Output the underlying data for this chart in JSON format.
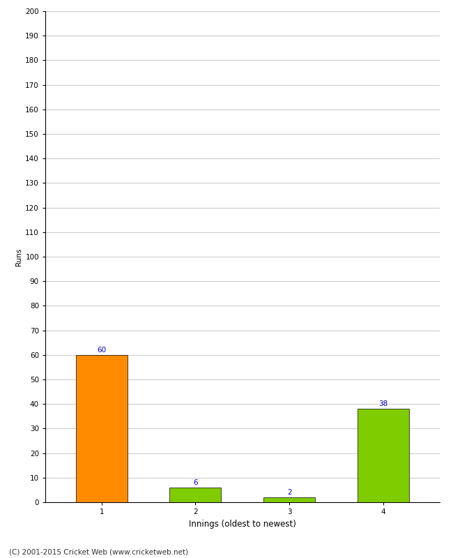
{
  "categories": [
    "1",
    "2",
    "3",
    "4"
  ],
  "values": [
    60,
    6,
    2,
    38
  ],
  "bar_colors": [
    "#ff8c00",
    "#7fcc00",
    "#7fcc00",
    "#7fcc00"
  ],
  "ylabel": "Runs",
  "xlabel": "Innings (oldest to newest)",
  "ylim": [
    0,
    200
  ],
  "yticks": [
    0,
    10,
    20,
    30,
    40,
    50,
    60,
    70,
    80,
    90,
    100,
    110,
    120,
    130,
    140,
    150,
    160,
    170,
    180,
    190,
    200
  ],
  "annotation_color": "#0000cc",
  "annotation_fontsize": 7.5,
  "background_color": "#ffffff",
  "grid_color": "#cccccc",
  "footer": "(C) 2001-2015 Cricket Web (www.cricketweb.net)",
  "xlabel_fontsize": 8.5,
  "ylabel_fontsize": 7.5,
  "tick_fontsize": 7.5,
  "footer_fontsize": 7.5,
  "bar_width": 0.55,
  "bar_edge_color": "#000000",
  "bar_linewidth": 0.5
}
